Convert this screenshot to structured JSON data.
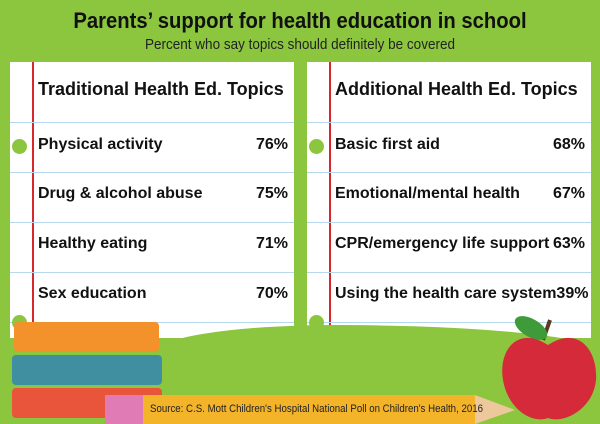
{
  "title": "Parents’ support for health education in school",
  "subtitle": "Percent who say topics should definitely be covered",
  "left": {
    "heading": "Traditional Health Ed. Topics",
    "items": [
      {
        "label": "Physical activity",
        "value": "76%"
      },
      {
        "label": "Drug & alcohol abuse",
        "value": "75%"
      },
      {
        "label": "Healthy eating",
        "value": "71%"
      },
      {
        "label": "Sex education",
        "value": "70%"
      }
    ]
  },
  "right": {
    "heading": "Additional Health Ed. Topics",
    "items": [
      {
        "label": "Basic first aid",
        "value": "68%"
      },
      {
        "label": "Emotional/mental health",
        "value": "67%"
      },
      {
        "label": "CPR/emergency life support",
        "value": "63%"
      },
      {
        "label": "Using the health care system",
        "value": "39%"
      }
    ]
  },
  "source": "Source: C.S. Mott Children's Hospital National Poll on Children's Health, 2016",
  "colors": {
    "background": "#8cc63f",
    "margin_line": "#d9262c",
    "rule": "#b5d8ee"
  }
}
